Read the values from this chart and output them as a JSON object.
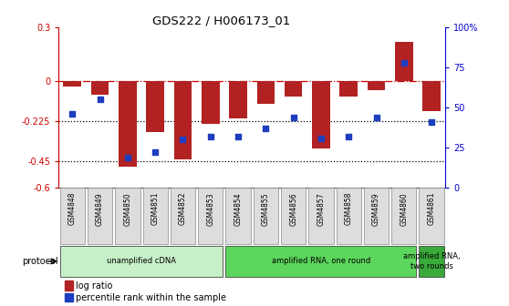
{
  "title": "GDS222 / H006173_01",
  "samples": [
    "GSM4848",
    "GSM4849",
    "GSM4850",
    "GSM4851",
    "GSM4852",
    "GSM4853",
    "GSM4854",
    "GSM4855",
    "GSM4856",
    "GSM4857",
    "GSM4858",
    "GSM4859",
    "GSM4860",
    "GSM4861"
  ],
  "log_ratio": [
    -0.03,
    -0.08,
    -0.48,
    -0.29,
    -0.44,
    -0.24,
    -0.21,
    -0.13,
    -0.09,
    -0.38,
    -0.09,
    -0.05,
    0.22,
    -0.17
  ],
  "percentile": [
    46,
    55,
    19,
    22,
    30,
    32,
    32,
    37,
    44,
    31,
    32,
    44,
    78,
    41
  ],
  "ylim_left": [
    -0.6,
    0.3
  ],
  "ylim_right": [
    0,
    100
  ],
  "yticks_left": [
    -0.6,
    -0.45,
    -0.225,
    0.0,
    0.3
  ],
  "ytick_labels_left": [
    "-0.6",
    "-0.45",
    "-0.225",
    "0",
    "0.3"
  ],
  "yticks_right": [
    0,
    25,
    50,
    75,
    100
  ],
  "ytick_labels_right": [
    "0",
    "25",
    "50",
    "75",
    "100%"
  ],
  "bar_color": "#B22222",
  "scatter_color": "#1E3EBF",
  "group_starts": [
    0,
    6,
    13
  ],
  "group_ends": [
    5,
    12,
    13
  ],
  "group_labels": [
    "unamplified cDNA",
    "amplified RNA, one round",
    "amplified RNA,\ntwo rounds"
  ],
  "group_colors": [
    "#C8F0C8",
    "#5CD65C",
    "#3AAA3A"
  ],
  "protocol_label": "protocol",
  "legend_bar_label": "log ratio",
  "legend_scatter_label": "percentile rank within the sample",
  "bar_width": 0.65,
  "fig_width": 5.58,
  "fig_height": 3.36,
  "dpi": 100
}
